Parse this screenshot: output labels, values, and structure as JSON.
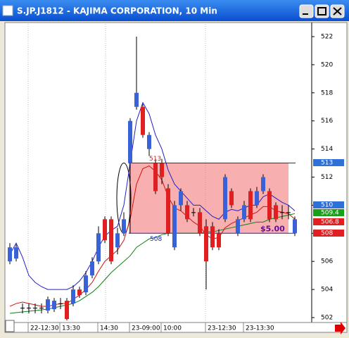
{
  "window_title": "S.JP.J1812 - KAJIMA CORPORATION, 10 Min",
  "chart_data": {
    "type": "candlestick",
    "categories": [
      null,
      null,
      null,
      null,
      null,
      null,
      "22-12:30",
      null,
      null,
      null,
      null,
      "13:30",
      null,
      null,
      null,
      null,
      null,
      "14:30",
      null,
      null,
      null,
      null,
      "23-09:00",
      null,
      null,
      null,
      null,
      "10:00",
      null,
      null,
      null,
      null,
      null,
      null,
      "23-12:30",
      null,
      null,
      null,
      null,
      null,
      "23-13:30",
      null,
      null,
      null,
      null,
      null
    ],
    "open": [
      506,
      506.2,
      502.7,
      502.7,
      502.7,
      502.7,
      502.5,
      502.6,
      503,
      503.2,
      503,
      504,
      503.8,
      505,
      506,
      509,
      509,
      507,
      508,
      513,
      517,
      517,
      514,
      513,
      513,
      511.2,
      507,
      510,
      510,
      509.5,
      509.5,
      508.5,
      508.5,
      508,
      509,
      511,
      508,
      509,
      511,
      510,
      511,
      511,
      510,
      509.5,
      509.5,
      508
    ],
    "high": [
      507.3,
      507.2,
      503,
      503,
      503,
      503,
      503.5,
      503.4,
      503.4,
      503.4,
      504.3,
      504.2,
      505.3,
      506.3,
      508.5,
      509.2,
      509.2,
      508.4,
      509.5,
      516.2,
      522,
      517.2,
      515.2,
      513.3,
      513.3,
      511.5,
      510.3,
      511.2,
      510.3,
      509.8,
      509.8,
      509,
      508.8,
      508.3,
      512.2,
      511.2,
      509.2,
      510.3,
      511.2,
      511.3,
      512.2,
      511.2,
      510.2,
      510,
      510,
      509.2
    ],
    "low": [
      505.8,
      506,
      502.3,
      502.3,
      502.3,
      502.3,
      502.3,
      502.4,
      502.6,
      501.8,
      502.8,
      503.4,
      503.6,
      504.8,
      505.8,
      507.3,
      505.8,
      506.5,
      507.8,
      508,
      516.8,
      514.8,
      513.5,
      510.8,
      511.5,
      507.8,
      506.8,
      509.6,
      508.8,
      509.2,
      507.8,
      504,
      506.8,
      506.8,
      508.8,
      509.8,
      507.8,
      508.8,
      508.8,
      509.8,
      510.8,
      508.8,
      508.8,
      509,
      509,
      507.8
    ],
    "close": [
      507,
      507,
      502.7,
      502.7,
      502.7,
      502.7,
      503.3,
      503.2,
      503,
      501.9,
      504,
      503.6,
      505,
      506,
      508,
      507.5,
      506,
      508,
      509,
      516,
      518,
      515,
      515,
      511,
      512,
      508,
      510,
      511,
      509,
      509.5,
      508,
      506,
      507,
      507,
      512,
      510,
      509,
      510,
      509,
      511,
      512,
      509,
      509,
      509.5,
      509.5,
      509
    ],
    "up_color": "#3a62d8",
    "down_color": "#e02020",
    "series": [
      {
        "name": "MA fast",
        "color": "#2020c8",
        "values": [
          506.5,
          507.3,
          506.3,
          505,
          504.5,
          504.2,
          504,
          504,
          504,
          504,
          504.2,
          504.6,
          505.2,
          506,
          507,
          507.8,
          508.2,
          508.5,
          510,
          513,
          516,
          517.3,
          516.5,
          515,
          514,
          512.5,
          511.5,
          511,
          510.5,
          510,
          510,
          509.6,
          509.2,
          509,
          509.5,
          509.7,
          509.6,
          509.8,
          510,
          510,
          510.6,
          510.8,
          510.5,
          510.2,
          510,
          509.6
        ]
      },
      {
        "name": "MA mid",
        "color": "#d01010",
        "values": [
          502.8,
          503,
          503.1,
          503,
          502.9,
          502.8,
          502.8,
          502.9,
          503,
          503,
          503.3,
          503.6,
          504,
          504.5,
          505.3,
          506,
          506.4,
          506.8,
          507.5,
          509,
          511.5,
          512.6,
          512.8,
          512.4,
          511.8,
          510.6,
          509.8,
          509.6,
          509.2,
          508.8,
          508.5,
          507.9,
          507.6,
          507.7,
          508.4,
          508.7,
          508.9,
          509.1,
          509.3,
          509.5,
          509.9,
          509.9,
          509.6,
          509.5,
          509.4,
          509
        ]
      },
      {
        "name": "MA slow",
        "color": "#108010",
        "values": [
          502.3,
          502.35,
          502.4,
          502.45,
          502.5,
          502.55,
          502.6,
          502.7,
          502.8,
          502.9,
          503,
          503.2,
          503.5,
          503.8,
          504.2,
          504.7,
          505.2,
          505.6,
          506,
          506.4,
          507,
          507.3,
          507.6,
          507.7,
          507.9,
          508,
          508,
          508,
          508,
          508,
          508,
          508.1,
          508.1,
          508.2,
          508.3,
          508.4,
          508.5,
          508.6,
          508.7,
          508.8,
          508.8,
          509,
          509.1,
          509.2,
          509.3,
          509.4
        ]
      }
    ],
    "zone": {
      "high": 513,
      "low": 508,
      "high_label": "513",
      "low_label": "508",
      "label": "$5.00"
    },
    "badges": [
      {
        "text": "513",
        "color": "#2f6fd8"
      },
      {
        "text": "510",
        "color": "#2f6fd8"
      },
      {
        "text": "509.4",
        "color": "#18a018"
      },
      {
        "text": "506.8",
        "color": "#e02020"
      },
      {
        "text": "508",
        "color": "#e02020"
      }
    ],
    "ylim": [
      502,
      522
    ],
    "yticks": [
      502,
      504,
      506,
      508,
      510,
      512,
      514,
      516,
      518,
      520,
      522
    ]
  }
}
